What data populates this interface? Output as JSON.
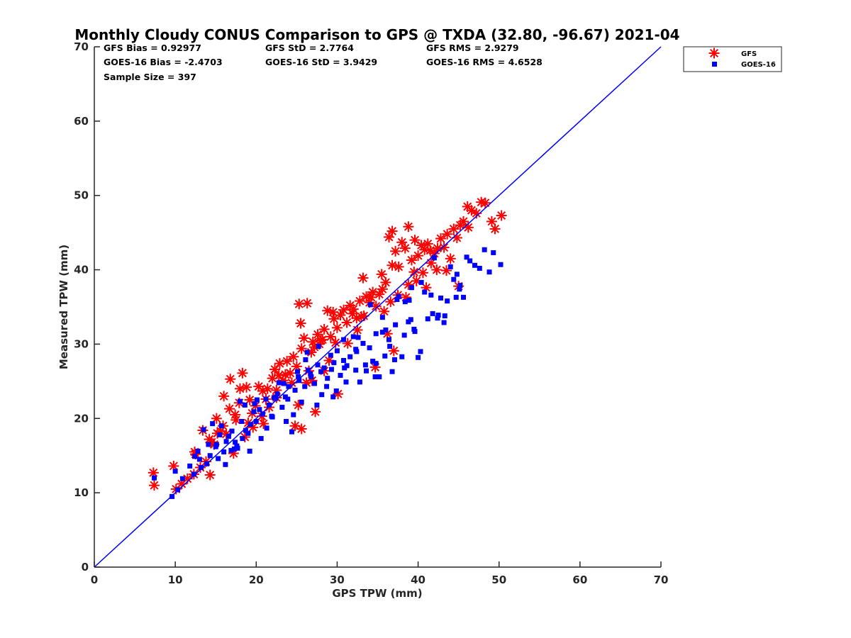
{
  "chart_data": {
    "type": "scatter",
    "title": "Monthly Cloudy CONUS Comparison to GPS @ TXDA (32.80, -96.67) 2021-04",
    "xlabel": "GPS TPW (mm)",
    "ylabel": "Measured TPW (mm)",
    "xlim": [
      0,
      70
    ],
    "ylim": [
      0,
      70
    ],
    "xticks": [
      "0",
      "10",
      "20",
      "30",
      "40",
      "50",
      "60",
      "70"
    ],
    "yticks": [
      "0",
      "10",
      "20",
      "30",
      "40",
      "50",
      "60",
      "70"
    ],
    "grid": false,
    "legend_position": "top-right outside",
    "stats": {
      "gfs_bias": "GFS Bias = 0.92977",
      "goes_bias": "GOES-16 Bias = -2.4703",
      "gfs_std": "GFS StD = 2.7764",
      "goes_std": "GOES-16 StD = 3.9429",
      "gfs_rms": "GFS RMS = 2.9279",
      "goes_rms": "GOES-16 RMS = 4.6528",
      "sample_size": "Sample Size = 397"
    },
    "reference_line": {
      "x": [
        0,
        70
      ],
      "y": [
        0,
        70
      ],
      "color": "#0000ff"
    },
    "series": [
      {
        "name": "GFS",
        "marker": "asterisk",
        "color": "#ff0000",
        "x": [
          7.3,
          7.4,
          9.8,
          10.1,
          10.8,
          11.5,
          12.3,
          12.5,
          13.4,
          13.8,
          14.2,
          14.3,
          14.8,
          15.1,
          15.6,
          16.0,
          16.3,
          16.8,
          17.2,
          17.5,
          17.9,
          18.3,
          18.6,
          19.0,
          19.5,
          19.9,
          20.3,
          20.7,
          21.2,
          21.6,
          22.0,
          22.5,
          22.9,
          23.3,
          23.8,
          24.2,
          24.6,
          25.0,
          25.3,
          25.6,
          25.9,
          26.2,
          26.5,
          26.8,
          27.2,
          27.6,
          28.0,
          28.4,
          28.8,
          29.2,
          29.6,
          30.0,
          30.4,
          30.8,
          31.2,
          31.6,
          32.0,
          32.4,
          32.8,
          33.2,
          33.6,
          34.0,
          34.4,
          34.8,
          35.2,
          35.6,
          36.0,
          36.4,
          36.8,
          37.2,
          37.6,
          38.0,
          38.4,
          38.8,
          39.2,
          39.6,
          40.0,
          40.4,
          40.8,
          41.2,
          41.6,
          42.0,
          42.4,
          42.8,
          43.2,
          43.6,
          44.0,
          44.4,
          44.8,
          45.2,
          45.6,
          46.1,
          46.6,
          47.2,
          47.8,
          48.3,
          49.1,
          49.5,
          50.3,
          18.0,
          19.2,
          20.8,
          22.5,
          24.8,
          25.6,
          27.3,
          28.4,
          30.1,
          31.9,
          33.3,
          34.7,
          36.2,
          37.0,
          38.5,
          39.8,
          41.0,
          24.4,
          25.5,
          26.3,
          22.3,
          16.7,
          15.9,
          14.5,
          13.1,
          12.4,
          27.8,
          29.0,
          29.5,
          32.5,
          35.5,
          36.6,
          43.5,
          45.0,
          46.2,
          19.6,
          20.9,
          21.4,
          23.6,
          26.9,
          28.2,
          31.3,
          34.2,
          36.8,
          38.8,
          40.6,
          42.3,
          15.2,
          17.4,
          18.8,
          22.8,
          25.2,
          27.0,
          29.8,
          33.0,
          35.8,
          37.5,
          39.5,
          41.5
        ],
        "y": [
          12.7,
          11.0,
          13.6,
          10.5,
          11.2,
          11.9,
          12.5,
          15.2,
          18.4,
          14.2,
          17.2,
          12.4,
          16.5,
          20.0,
          18.3,
          23.0,
          17.9,
          25.3,
          15.3,
          19.8,
          22.1,
          26.1,
          17.5,
          19.4,
          20.7,
          21.7,
          24.3,
          20.3,
          22.6,
          21.5,
          25.4,
          23.8,
          27.4,
          25.1,
          27.7,
          26.1,
          28.3,
          27.0,
          35.4,
          29.4,
          30.8,
          24.8,
          26.4,
          28.9,
          29.6,
          31.3,
          30.5,
          32.0,
          34.5,
          31.0,
          33.4,
          32.2,
          33.9,
          34.6,
          32.9,
          35.2,
          34.7,
          33.5,
          35.8,
          38.9,
          36.4,
          35.6,
          37.0,
          35.1,
          36.7,
          37.4,
          38.3,
          44.4,
          45.2,
          42.5,
          40.4,
          43.7,
          42.9,
          45.8,
          41.3,
          44.0,
          41.9,
          43.3,
          42.7,
          43.5,
          40.9,
          42.2,
          42.9,
          44.2,
          43.0,
          44.8,
          41.5,
          45.5,
          44.3,
          46.0,
          46.5,
          48.5,
          48.0,
          47.6,
          49.1,
          49.0,
          46.5,
          45.5,
          47.3,
          24.0,
          22.5,
          23.7,
          22.8,
          19.0,
          18.6,
          20.9,
          26.4,
          23.3,
          34.1,
          33.8,
          26.9,
          31.4,
          29.1,
          36.3,
          38.5,
          37.6,
          24.8,
          32.8,
          35.5,
          26.6,
          21.3,
          19.0,
          16.8,
          13.4,
          15.5,
          30.0,
          27.8,
          34.3,
          31.9,
          39.4,
          35.7,
          39.9,
          37.8,
          45.7,
          18.8,
          19.3,
          24.0,
          25.9,
          25.1,
          30.6,
          30.1,
          36.3,
          40.6,
          38.0,
          39.6,
          40.0,
          18.0,
          20.5,
          24.2,
          25.8,
          21.8,
          30.3,
          30.2,
          33.7,
          34.4,
          36.6,
          39.7,
          42.6
        ]
      },
      {
        "name": "GOES-16",
        "marker": "square",
        "color": "#0000ff",
        "x": [
          7.4,
          9.6,
          10.0,
          10.3,
          10.9,
          11.8,
          12.4,
          12.8,
          13.2,
          13.5,
          13.9,
          14.3,
          14.6,
          15.0,
          15.3,
          15.7,
          16.0,
          16.3,
          16.6,
          17.0,
          17.3,
          17.6,
          18.0,
          18.3,
          18.7,
          19.0,
          19.3,
          19.7,
          20.0,
          20.4,
          20.8,
          21.2,
          21.6,
          22.0,
          22.4,
          22.8,
          23.2,
          23.6,
          24.0,
          24.4,
          24.8,
          25.2,
          25.6,
          26.0,
          26.4,
          26.8,
          27.2,
          27.6,
          28.0,
          28.4,
          28.8,
          29.2,
          29.6,
          30.0,
          30.4,
          30.8,
          31.2,
          31.6,
          32.0,
          32.4,
          32.8,
          33.2,
          33.6,
          34.0,
          34.4,
          34.8,
          35.2,
          35.6,
          36.0,
          36.4,
          36.8,
          37.2,
          37.6,
          38.0,
          38.4,
          38.8,
          39.2,
          39.6,
          40.0,
          40.4,
          40.8,
          41.2,
          41.6,
          42.0,
          42.4,
          42.8,
          43.2,
          43.6,
          44.0,
          44.4,
          44.8,
          45.2,
          45.6,
          46.0,
          46.4,
          47.0,
          47.6,
          48.2,
          48.8,
          49.3,
          50.2,
          12.3,
          13.0,
          14.1,
          15.5,
          16.9,
          18.2,
          19.8,
          21.3,
          22.6,
          23.9,
          25.1,
          26.3,
          27.5,
          28.7,
          29.9,
          31.1,
          32.3,
          33.5,
          34.7,
          35.9,
          37.1,
          38.3,
          39.5,
          16.2,
          17.4,
          18.6,
          20.1,
          21.9,
          23.4,
          24.6,
          26.1,
          27.7,
          29.3,
          30.8,
          32.6,
          34.1,
          35.6,
          37.4,
          38.9,
          40.3,
          41.8,
          43.3,
          44.7,
          15.1,
          17.7,
          19.2,
          20.6,
          22.2,
          23.7,
          25.3,
          26.7,
          28.1,
          29.5,
          30.9,
          32.3,
          34.8,
          36.5,
          39.1,
          42.5,
          45.1
        ],
        "y": [
          12.0,
          9.5,
          12.9,
          10.4,
          11.9,
          13.6,
          14.9,
          15.6,
          13.4,
          18.5,
          13.9,
          15.0,
          19.3,
          16.2,
          14.6,
          19.0,
          15.5,
          16.9,
          17.6,
          18.3,
          15.9,
          16.3,
          22.3,
          17.3,
          18.4,
          18.0,
          19.2,
          20.9,
          19.6,
          21.2,
          20.6,
          22.6,
          21.8,
          20.2,
          22.7,
          24.8,
          21.5,
          22.9,
          24.3,
          18.2,
          23.8,
          25.6,
          22.2,
          24.3,
          26.5,
          25.6,
          24.7,
          27.2,
          26.3,
          26.8,
          25.4,
          28.5,
          27.5,
          29.1,
          25.8,
          30.6,
          27.1,
          28.3,
          31.0,
          29.0,
          24.9,
          30.1,
          26.4,
          29.5,
          27.7,
          31.4,
          25.6,
          33.6,
          31.9,
          30.6,
          26.3,
          32.6,
          36.4,
          28.3,
          35.7,
          33.0,
          37.6,
          31.7,
          28.2,
          38.3,
          37.0,
          33.4,
          36.6,
          41.6,
          33.5,
          36.2,
          32.9,
          35.8,
          40.4,
          38.7,
          39.4,
          37.9,
          36.3,
          41.7,
          41.2,
          40.6,
          40.2,
          42.7,
          39.7,
          42.3,
          40.7,
          12.5,
          14.5,
          16.5,
          17.8,
          15.7,
          19.6,
          22.0,
          18.7,
          23.3,
          22.6,
          26.3,
          28.9,
          21.8,
          24.3,
          23.7,
          24.9,
          26.5,
          27.2,
          25.6,
          28.4,
          27.9,
          31.2,
          32.0,
          13.8,
          16.8,
          21.8,
          22.5,
          20.3,
          24.7,
          20.5,
          27.9,
          29.7,
          26.6,
          27.8,
          30.9,
          35.3,
          31.6,
          36.0,
          35.9,
          29.0,
          34.1,
          33.8,
          36.3,
          16.5,
          16.0,
          15.6,
          17.3,
          22.8,
          19.6,
          25.1,
          26.0,
          23.2,
          22.9,
          26.8,
          29.3,
          27.4,
          29.7,
          33.3,
          33.9,
          37.4
        ]
      }
    ]
  }
}
